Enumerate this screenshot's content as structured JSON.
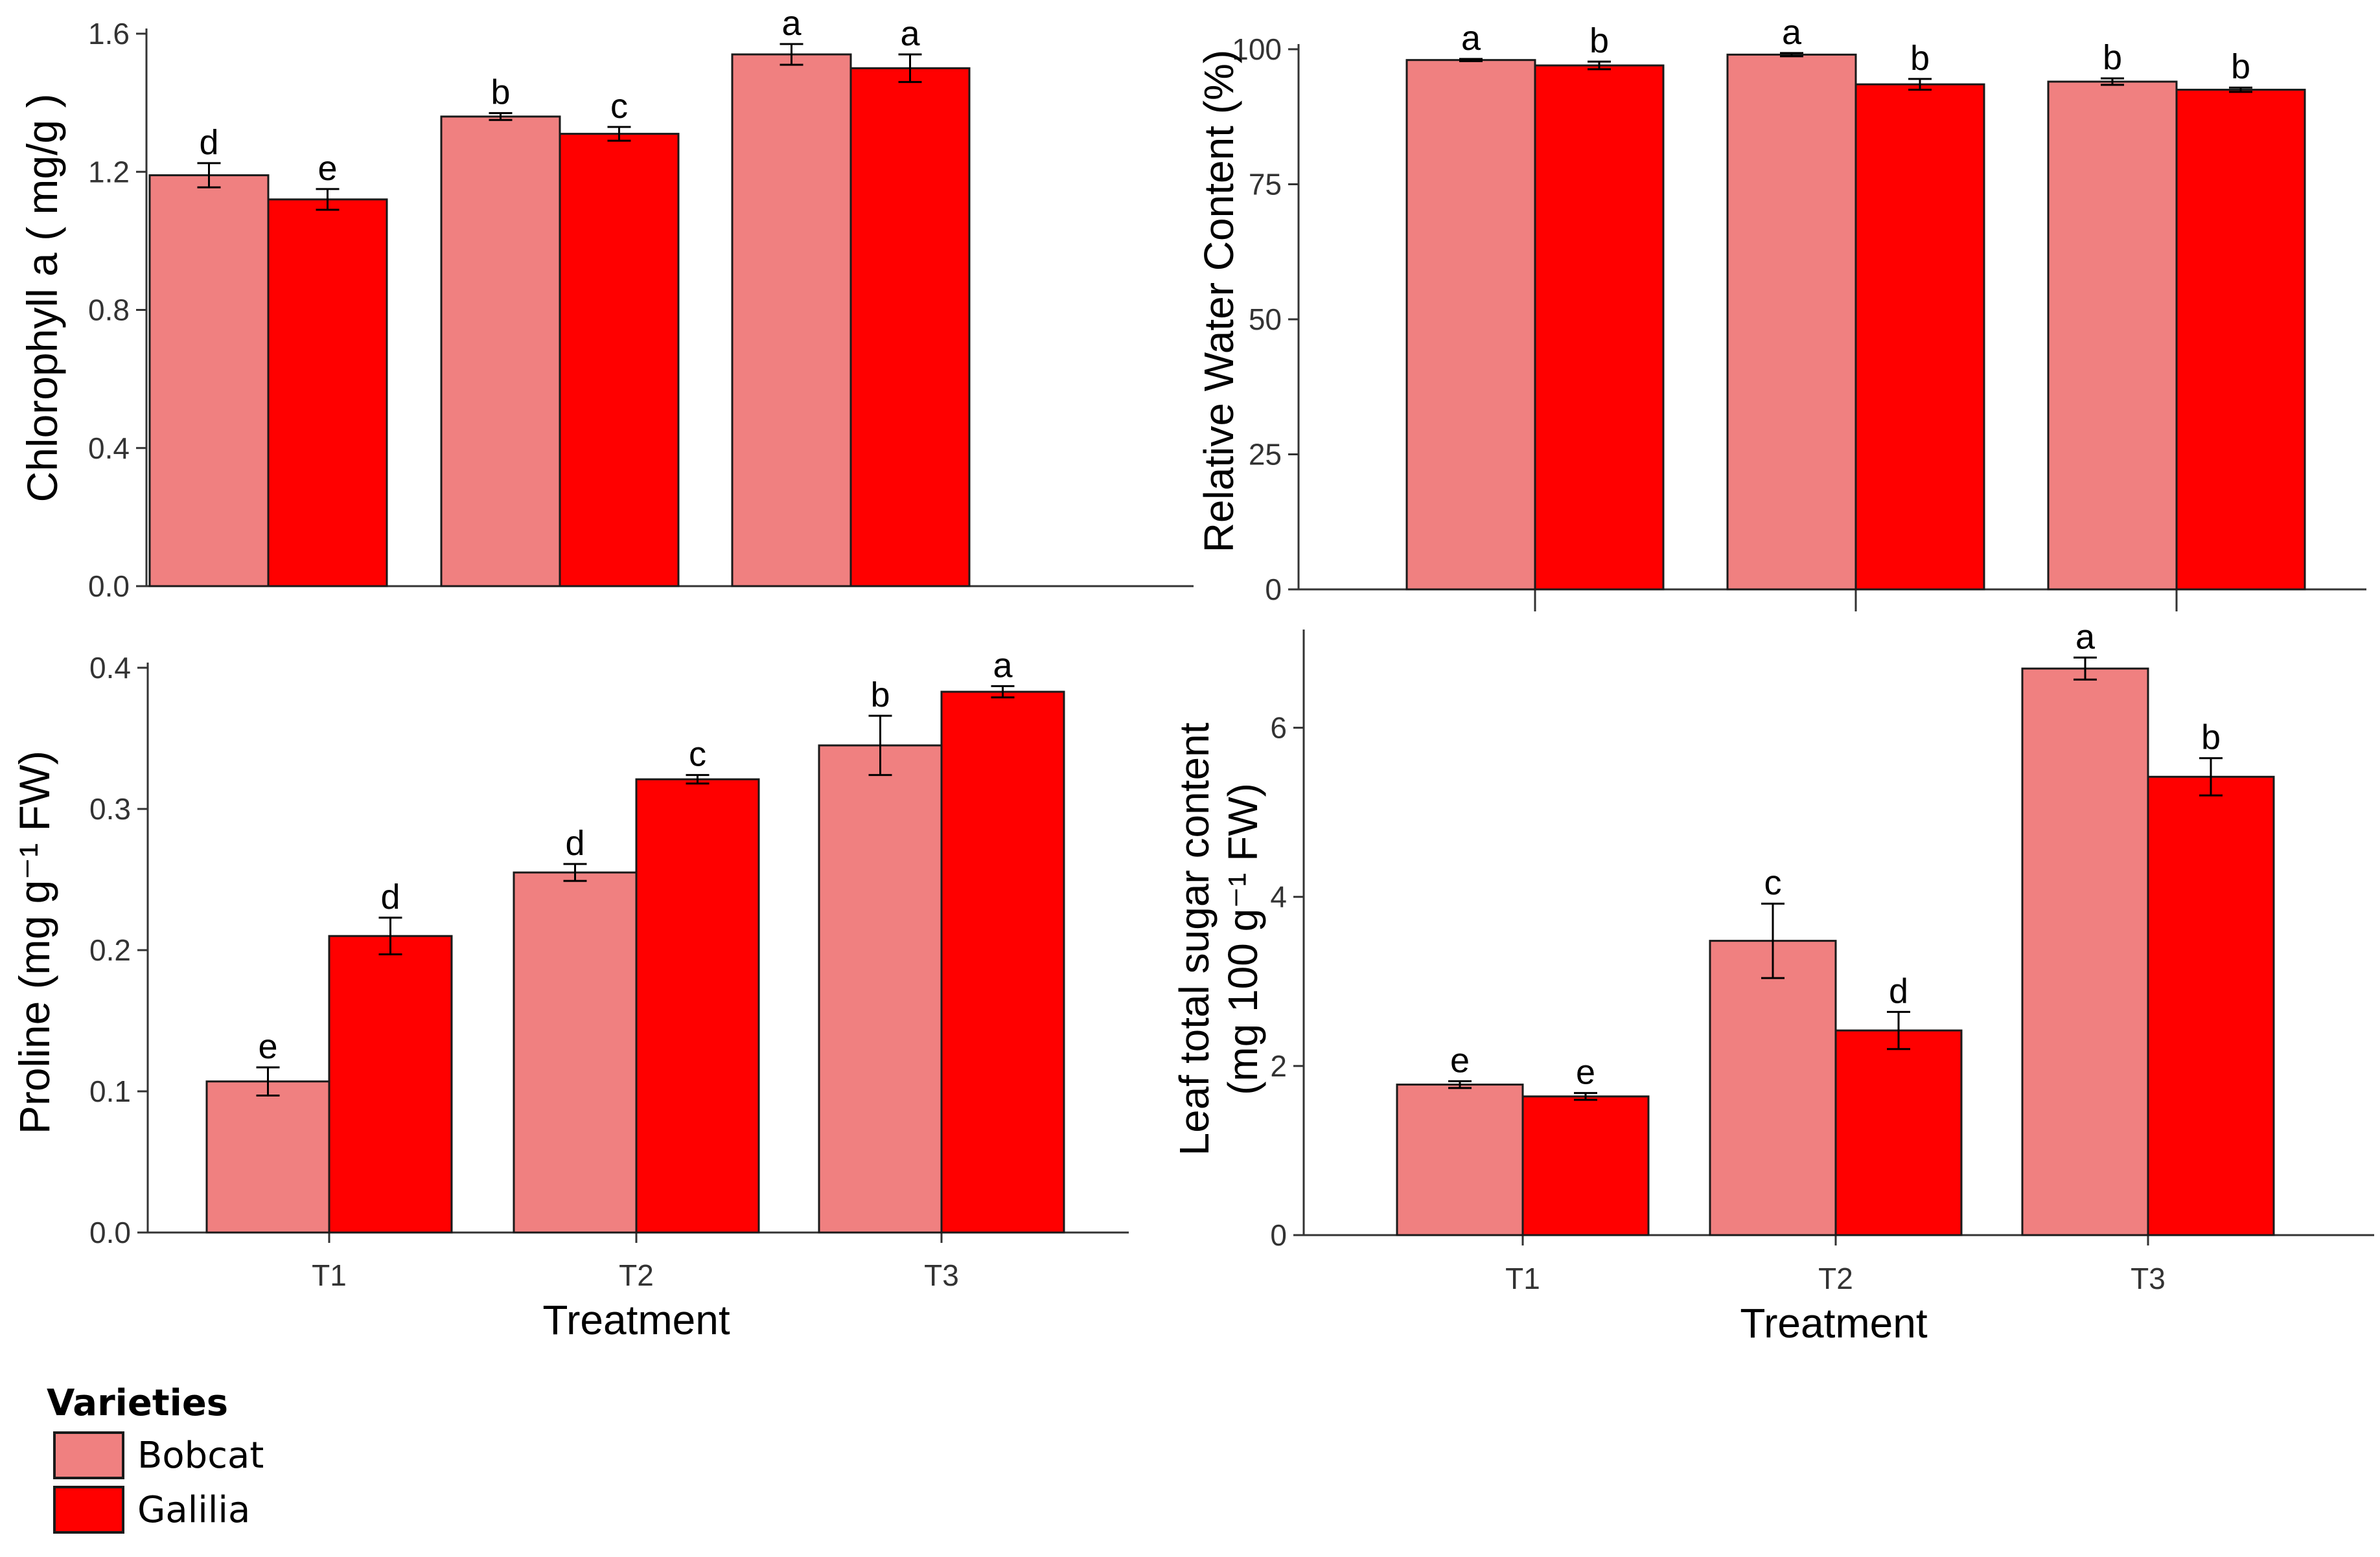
{
  "chart_data": [
    {
      "type": "bar",
      "panel": "top-left",
      "categories": [
        "T1",
        "T2",
        "T3"
      ],
      "show_tick_labels": false,
      "xlabel": "",
      "ylabel": "Chlorophyll a ( mg/g )",
      "ylim": [
        0,
        1.6
      ],
      "yticks": [
        "0.0",
        "0.4",
        "0.8",
        "1.2",
        "1.6"
      ],
      "grid": false,
      "series": [
        {
          "name": "Bobcat",
          "values": [
            1.19,
            1.36,
            1.54
          ],
          "errors": [
            0.035,
            0.01,
            0.03
          ],
          "letters": [
            "d",
            "b",
            "a"
          ]
        },
        {
          "name": "Galilia",
          "values": [
            1.12,
            1.31,
            1.5
          ],
          "errors": [
            0.03,
            0.02,
            0.04
          ],
          "letters": [
            "e",
            "c",
            "a"
          ]
        }
      ]
    },
    {
      "type": "bar",
      "panel": "top-right",
      "categories": [
        "T1",
        "T2",
        "T3"
      ],
      "show_tick_labels": false,
      "xlabel": "",
      "ylabel": "Relative Water Content  (%)",
      "ylim": [
        0,
        100
      ],
      "yticks": [
        "0",
        "25",
        "50",
        "75",
        "100"
      ],
      "grid": false,
      "series": [
        {
          "name": "Bobcat",
          "values": [
            98.0,
            99.0,
            94.0
          ],
          "errors": [
            0.2,
            0.3,
            0.6
          ],
          "letters": [
            "a",
            "a",
            "b"
          ]
        },
        {
          "name": "Galilia",
          "values": [
            97.0,
            93.5,
            92.5
          ],
          "errors": [
            0.7,
            1.0,
            0.4
          ],
          "letters": [
            "b",
            "b",
            "b"
          ]
        }
      ]
    },
    {
      "type": "bar",
      "panel": "bottom-left",
      "categories": [
        "T1",
        "T2",
        "T3"
      ],
      "show_tick_labels": true,
      "xlabel": "Treatment",
      "ylabel": "Proline (mg g⁻¹ FW)",
      "ylim": [
        0,
        0.4
      ],
      "yticks": [
        "0.0",
        "0.1",
        "0.2",
        "0.3",
        "0.4"
      ],
      "grid": false,
      "series": [
        {
          "name": "Bobcat",
          "values": [
            0.107,
            0.255,
            0.345
          ],
          "errors": [
            0.01,
            0.006,
            0.021
          ],
          "letters": [
            "e",
            "d",
            "b"
          ]
        },
        {
          "name": "Galilia",
          "values": [
            0.21,
            0.321,
            0.383
          ],
          "errors": [
            0.013,
            0.003,
            0.004
          ],
          "letters": [
            "d",
            "c",
            "a"
          ]
        }
      ]
    },
    {
      "type": "bar",
      "panel": "bottom-right",
      "categories": [
        "T1",
        "T2",
        "T3"
      ],
      "show_tick_labels": true,
      "xlabel": "Treatment",
      "ylabel": "Leaf total sugar content",
      "ylabel2": "(mg 100 g⁻¹ FW)",
      "ylim": [
        0,
        7.1
      ],
      "yticks": [
        "0",
        "2",
        "4",
        "6"
      ],
      "grid": false,
      "series": [
        {
          "name": "Bobcat",
          "values": [
            1.78,
            3.48,
            6.7
          ],
          "errors": [
            0.04,
            0.44,
            0.13
          ],
          "letters": [
            "e",
            "c",
            "a"
          ]
        },
        {
          "name": "Galilia",
          "values": [
            1.64,
            2.42,
            5.42
          ],
          "errors": [
            0.04,
            0.22,
            0.22
          ],
          "letters": [
            "e",
            "d",
            "b"
          ]
        }
      ]
    }
  ],
  "legend": {
    "title": "Varieties",
    "items": [
      {
        "label": "Bobcat",
        "color": "#f08080"
      },
      {
        "label": "Galilia",
        "color": "#ff0000"
      }
    ]
  },
  "colors": {
    "bobcat": "#f08080",
    "galilia": "#ff0000",
    "axis": "#333333",
    "outline": "#1a1a1a"
  }
}
